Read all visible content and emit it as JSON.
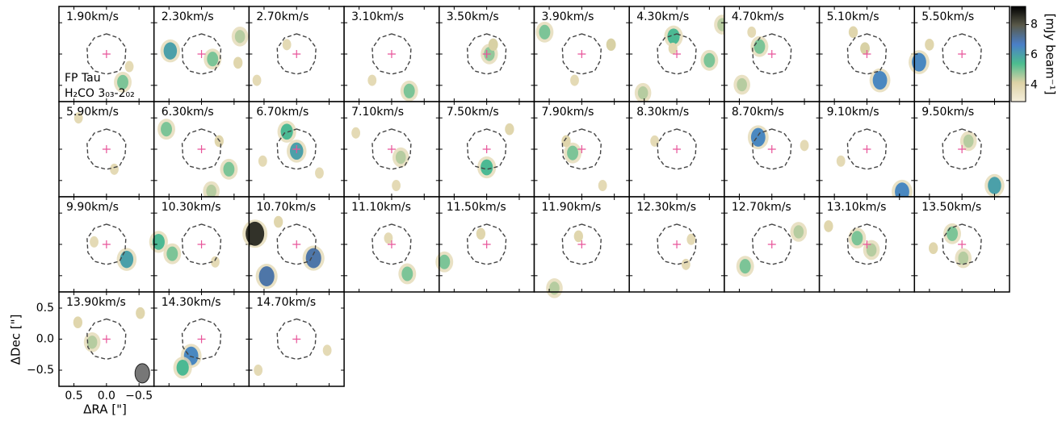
{
  "chart_data": {
    "type": "heatmap",
    "annotations": [
      "FP Tau",
      "H₂CO 3₀₃-2₀₂"
    ],
    "xlabel": "ΔRA [\"]",
    "ylabel": "ΔDec [\"]",
    "xlim": [
      0.73,
      -0.73
    ],
    "ylim": [
      -0.76,
      0.76
    ],
    "xticks": [
      0.5,
      {
        "value": 0,
        "label": "0.0"
      },
      {
        "value": -0.5,
        "label": "−0.5"
      }
    ],
    "yticks": [
      0.5,
      {
        "value": 0,
        "label": "0.0"
      },
      {
        "value": -0.5,
        "label": "−0.5"
      }
    ],
    "colorbar": {
      "label": "[mJy beam⁻¹]",
      "lim": [
        2.9,
        9.2
      ],
      "ticks": [
        4,
        6,
        8
      ],
      "colors": [
        "#f4eedb",
        "#ddd2a6",
        "#4cbd8f",
        "#4a7fc8",
        "#5a5a4a",
        "#000000"
      ]
    },
    "panels": [
      {
        "label": "1.90km/s",
        "blobs": [
          {
            "x": -0.25,
            "y": -0.45,
            "value": 5.0
          },
          {
            "x": -0.35,
            "y": -0.2,
            "value": 3.8
          }
        ]
      },
      {
        "label": "2.30km/s",
        "blobs": [
          {
            "x": 0.48,
            "y": 0.05,
            "value": 6.0
          },
          {
            "x": -0.17,
            "y": -0.08,
            "value": 5.0
          },
          {
            "x": -0.59,
            "y": 0.28,
            "value": 4.5
          },
          {
            "x": -0.56,
            "y": -0.14,
            "value": 4.0
          }
        ]
      },
      {
        "label": "2.70km/s",
        "blobs": [
          {
            "x": 0.15,
            "y": 0.15,
            "value": 3.8
          },
          {
            "x": 0.61,
            "y": -0.42,
            "value": 3.8
          }
        ]
      },
      {
        "label": "3.10km/s",
        "blobs": [
          {
            "x": -0.27,
            "y": -0.59,
            "value": 5.0
          },
          {
            "x": 0.3,
            "y": -0.42,
            "value": 3.8
          }
        ]
      },
      {
        "label": "3.50km/s",
        "blobs": [
          {
            "x": -0.04,
            "y": 0,
            "value": 4.8
          },
          {
            "x": -0.1,
            "y": 0.15,
            "value": 4.2
          }
        ]
      },
      {
        "label": "3.90km/s",
        "blobs": [
          {
            "x": 0.57,
            "y": 0.35,
            "value": 5.0
          },
          {
            "x": -0.45,
            "y": 0.15,
            "value": 4.2
          },
          {
            "x": 0.11,
            "y": -0.42,
            "value": 3.8
          }
        ]
      },
      {
        "label": "4.30km/s",
        "blobs": [
          {
            "x": 0.05,
            "y": 0.28,
            "value": 5.5
          },
          {
            "x": -0.5,
            "y": -0.1,
            "value": 5.0
          },
          {
            "x": -0.7,
            "y": 0.47,
            "value": 4.5
          },
          {
            "x": 0.52,
            "y": -0.62,
            "value": 4.5
          },
          {
            "x": 0.06,
            "y": 0.09,
            "value": 3.9
          }
        ]
      },
      {
        "label": "4.70km/s",
        "blobs": [
          {
            "x": 0.19,
            "y": 0.12,
            "value": 5.0
          },
          {
            "x": 0.46,
            "y": -0.49,
            "value": 4.5
          },
          {
            "x": 0.31,
            "y": 0.35,
            "value": 3.8
          }
        ]
      },
      {
        "label": "5.10km/s",
        "blobs": [
          {
            "x": -0.2,
            "y": -0.42,
            "value": 6.5
          },
          {
            "x": 0.03,
            "y": 0.09,
            "value": 4.2
          },
          {
            "x": 0.21,
            "y": 0.35,
            "value": 4.0
          }
        ]
      },
      {
        "label": "5.50km/s",
        "blobs": [
          {
            "x": 0.66,
            "y": -0.13,
            "value": 6.5
          },
          {
            "x": 0.5,
            "y": 0.15,
            "value": 4.0
          }
        ]
      },
      {
        "label": "5.90km/s",
        "blobs": [
          {
            "x": 0.43,
            "y": 0.5,
            "value": 3.8
          },
          {
            "x": -0.12,
            "y": -0.32,
            "value": 3.8
          }
        ]
      },
      {
        "label": "6.30km/s",
        "blobs": [
          {
            "x": 0.54,
            "y": 0.32,
            "value": 5.0
          },
          {
            "x": -0.42,
            "y": -0.32,
            "value": 5.0
          },
          {
            "x": -0.27,
            "y": 0.13,
            "value": 4.0
          },
          {
            "x": -0.15,
            "y": -0.67,
            "value": 4.5
          }
        ]
      },
      {
        "label": "6.70km/s",
        "blobs": [
          {
            "x": 0,
            "y": -0.03,
            "value": 6.0
          },
          {
            "x": 0.15,
            "y": 0.28,
            "value": 5.5
          },
          {
            "x": 0.52,
            "y": -0.19,
            "value": 3.8
          },
          {
            "x": -0.35,
            "y": -0.38,
            "value": 3.8
          }
        ]
      },
      {
        "label": "7.10km/s",
        "blobs": [
          {
            "x": -0.14,
            "y": -0.13,
            "value": 4.5
          },
          {
            "x": 0.55,
            "y": 0.26,
            "value": 3.8
          },
          {
            "x": -0.07,
            "y": -0.58,
            "value": 3.8
          }
        ]
      },
      {
        "label": "7.50km/s",
        "blobs": [
          {
            "x": 0,
            "y": -0.29,
            "value": 5.5
          },
          {
            "x": -0.35,
            "y": 0.32,
            "value": 4.0
          }
        ]
      },
      {
        "label": "7.90km/s",
        "blobs": [
          {
            "x": 0.14,
            "y": -0.06,
            "value": 5.0
          },
          {
            "x": 0.24,
            "y": 0.13,
            "value": 4.0
          },
          {
            "x": -0.32,
            "y": -0.58,
            "value": 3.8
          }
        ]
      },
      {
        "label": "8.30km/s",
        "blobs": [
          {
            "x": 0.34,
            "y": 0.13,
            "value": 3.8
          }
        ]
      },
      {
        "label": "8.70km/s",
        "blobs": [
          {
            "x": 0.21,
            "y": 0.19,
            "value": 6.5
          },
          {
            "x": -0.5,
            "y": 0.06,
            "value": 3.8
          }
        ]
      },
      {
        "label": "9.10km/s",
        "blobs": [
          {
            "x": -0.54,
            "y": -0.68,
            "value": 6.5
          },
          {
            "x": 0.4,
            "y": -0.19,
            "value": 3.8
          }
        ]
      },
      {
        "label": "9.50km/s",
        "blobs": [
          {
            "x": -0.1,
            "y": 0.13,
            "value": 4.5
          },
          {
            "x": -0.5,
            "y": -0.58,
            "value": 6.0
          }
        ]
      },
      {
        "label": "9.90km/s",
        "blobs": [
          {
            "x": -0.31,
            "y": -0.24,
            "value": 6.0
          },
          {
            "x": 0.19,
            "y": 0.04,
            "value": 3.8
          }
        ]
      },
      {
        "label": "10.30km/s",
        "blobs": [
          {
            "x": 0.66,
            "y": 0.04,
            "value": 5.5
          },
          {
            "x": 0.45,
            "y": -0.15,
            "value": 5.0
          },
          {
            "x": -0.21,
            "y": -0.28,
            "value": 3.8
          }
        ]
      },
      {
        "label": "10.70km/s",
        "blobs": [
          {
            "x": 0.64,
            "y": 0.17,
            "value": 8.5
          },
          {
            "x": 0.46,
            "y": -0.51,
            "value": 7.0
          },
          {
            "x": -0.26,
            "y": -0.22,
            "value": 7.0
          },
          {
            "x": 0.28,
            "y": 0.36,
            "value": 4.0
          }
        ]
      },
      {
        "label": "11.10km/s",
        "blobs": [
          {
            "x": -0.24,
            "y": -0.47,
            "value": 5.0
          },
          {
            "x": 0.05,
            "y": 0.1,
            "value": 3.8
          }
        ]
      },
      {
        "label": "11.50km/s",
        "blobs": [
          {
            "x": 0.65,
            "y": -0.28,
            "value": 5.0
          },
          {
            "x": 0.09,
            "y": 0.17,
            "value": 4.0
          }
        ]
      },
      {
        "label": "11.90km/s",
        "blobs": [
          {
            "x": 0.05,
            "y": 0.13,
            "value": 4.0
          },
          {
            "x": 0.42,
            "y": -0.7,
            "value": 4.5
          }
        ]
      },
      {
        "label": "12.30km/s",
        "blobs": [
          {
            "x": -0.14,
            "y": -0.32,
            "value": 3.8
          },
          {
            "x": -0.22,
            "y": 0.08,
            "value": 3.8
          }
        ]
      },
      {
        "label": "12.70km/s",
        "blobs": [
          {
            "x": 0.41,
            "y": -0.35,
            "value": 5.0
          },
          {
            "x": -0.41,
            "y": 0.2,
            "value": 4.5
          }
        ]
      },
      {
        "label": "13.10km/s",
        "blobs": [
          {
            "x": 0.15,
            "y": 0.1,
            "value": 5.0
          },
          {
            "x": -0.07,
            "y": -0.09,
            "value": 4.5
          },
          {
            "x": 0.59,
            "y": 0.29,
            "value": 4.0
          }
        ]
      },
      {
        "label": "13.50km/s",
        "blobs": [
          {
            "x": 0.15,
            "y": 0.17,
            "value": 5.0
          },
          {
            "x": -0.02,
            "y": -0.22,
            "value": 4.5
          },
          {
            "x": 0.44,
            "y": -0.06,
            "value": 4.0
          }
        ]
      },
      {
        "label": "13.90km/s",
        "blobs": [
          {
            "x": 0.22,
            "y": -0.05,
            "value": 4.5
          },
          {
            "x": 0.44,
            "y": 0.27,
            "value": 4.0
          },
          {
            "x": -0.52,
            "y": 0.42,
            "value": 4.0
          }
        ]
      },
      {
        "label": "14.30km/s",
        "blobs": [
          {
            "x": 0.16,
            "y": -0.27,
            "value": 6.5
          },
          {
            "x": 0.29,
            "y": -0.46,
            "value": 5.5
          }
        ]
      },
      {
        "label": "14.70km/s",
        "blobs": [
          {
            "x": 0.59,
            "y": -0.5,
            "value": 3.8
          },
          {
            "x": -0.47,
            "y": -0.18,
            "value": 3.8
          }
        ]
      }
    ]
  }
}
